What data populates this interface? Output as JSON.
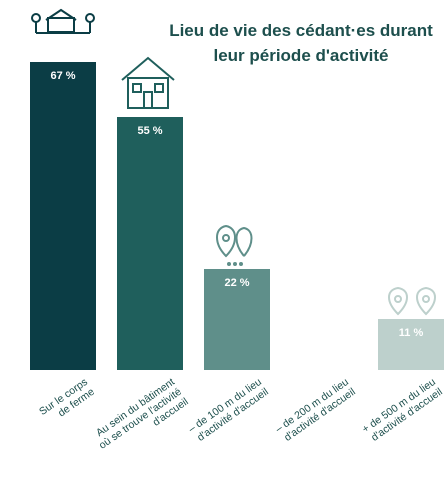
{
  "chart_data": {
    "type": "bar",
    "title": "Lieu de vie des cédant·es durant leur période d'activité",
    "categories": [
      "Sur le corps\nde ferme",
      "Au sein du bâtiment\noù se trouve l'activité\nd'accueil",
      "– de 100 m du lieu\nd'activité d'accueil",
      "– de 200 m du lieu\nd'activité d'accueil",
      "+ de 500 m du lieu\nd'activité d'accueil"
    ],
    "values": [
      67,
      55,
      22,
      0,
      11
    ],
    "value_labels": [
      "67 %",
      "55 %",
      "22 %",
      null,
      "11 %"
    ],
    "colors": [
      "#0b3d45",
      "#1f5f5c",
      "#5f8f8a",
      "#8fb0ac",
      "#bdd0cc"
    ]
  }
}
